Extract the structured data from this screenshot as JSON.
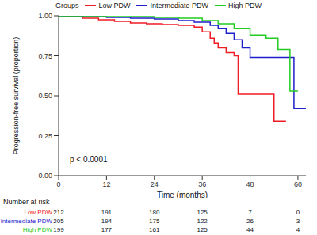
{
  "chart_data": {
    "type": "line",
    "line_style": "step",
    "legend": "top",
    "legend_title": "Groups",
    "grid": false,
    "xlabel": "Time (months)",
    "ylabel": "Progression-free survival (proportion)",
    "annotation": "p < 0.0001",
    "xlim": [
      0,
      62
    ],
    "xticks": [
      0,
      12,
      24,
      36,
      48,
      60
    ],
    "ylim": [
      0,
      1
    ],
    "yticks": [
      {
        "value": 0,
        "label": "0.00"
      },
      {
        "value": 0.25,
        "label": "0.25"
      },
      {
        "value": 0.5,
        "label": "0.50"
      },
      {
        "value": 0.75,
        "label": "0.75"
      },
      {
        "value": 1,
        "label": "1.00"
      }
    ],
    "series": [
      {
        "name": "Low PDW",
        "color": "#ee1c25",
        "x": [
          0,
          3,
          6,
          10,
          14,
          18,
          22,
          26,
          30,
          34,
          36,
          38,
          39,
          40,
          42,
          44,
          45,
          54,
          57
        ],
        "values": [
          1,
          0.995,
          0.985,
          0.975,
          0.965,
          0.955,
          0.95,
          0.945,
          0.94,
          0.93,
          0.9,
          0.86,
          0.83,
          0.8,
          0.77,
          0.75,
          0.51,
          0.34,
          0.34
        ]
      },
      {
        "name": "Intermediate PDW",
        "color": "#1f1fcc",
        "x": [
          0,
          6,
          12,
          18,
          24,
          30,
          34,
          38,
          40,
          42,
          44,
          46,
          48,
          59,
          62
        ],
        "values": [
          1,
          0.995,
          0.99,
          0.985,
          0.98,
          0.97,
          0.96,
          0.94,
          0.92,
          0.89,
          0.85,
          0.8,
          0.74,
          0.42,
          0.42
        ]
      },
      {
        "name": "High PDW",
        "color": "#22cc22",
        "x": [
          0,
          12,
          24,
          30,
          36,
          40,
          44,
          48,
          52,
          55,
          58,
          60
        ],
        "values": [
          1,
          0.995,
          0.99,
          0.985,
          0.97,
          0.95,
          0.92,
          0.88,
          0.86,
          0.79,
          0.53,
          0.53
        ]
      }
    ],
    "risk_table": {
      "title": "Number at risk",
      "x": [
        0,
        12,
        24,
        36,
        48,
        60
      ],
      "counts": [
        [
          212,
          191,
          180,
          125,
          7,
          0
        ],
        [
          205,
          194,
          175,
          122,
          26,
          3
        ],
        [
          199,
          177,
          161,
          125,
          44,
          4
        ]
      ]
    }
  }
}
